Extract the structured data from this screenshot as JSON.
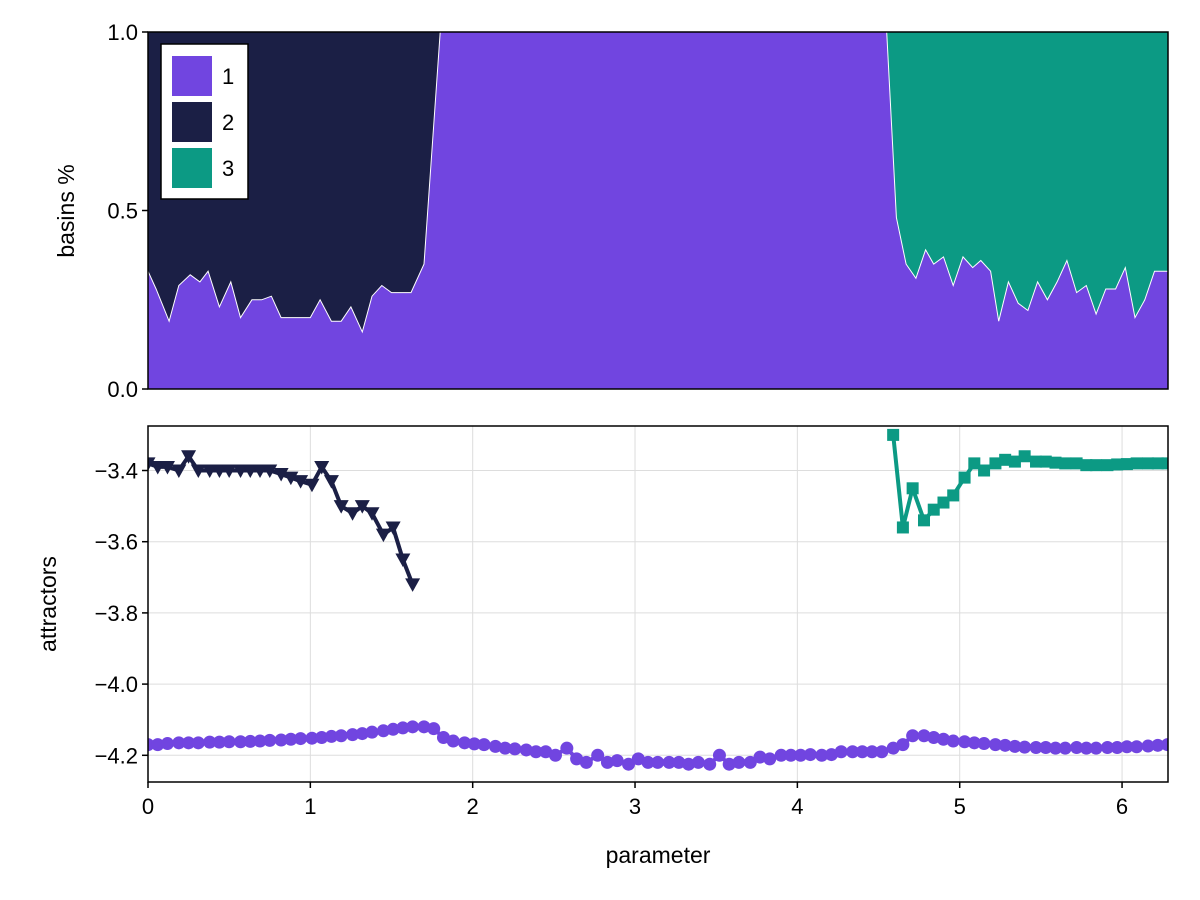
{
  "colors": {
    "series1": "#7145e0",
    "series2": "#1b1f45",
    "series3": "#0c9a84",
    "grid": "#dddddd",
    "frame": "#000000"
  },
  "chart_data": [
    {
      "type": "area",
      "stacked": true,
      "ylabel": "basins %",
      "xlabel": "",
      "xlim": [
        0,
        6.283
      ],
      "ylim": [
        0,
        1
      ],
      "yticks": [
        "0.0",
        "0.5",
        "1.0"
      ],
      "grid": false,
      "legend": {
        "placement": "top-left",
        "entries": [
          "1",
          "2",
          "3"
        ]
      },
      "x": [
        0.0,
        0.05,
        0.13,
        0.19,
        0.26,
        0.32,
        0.37,
        0.44,
        0.51,
        0.57,
        0.64,
        0.7,
        0.76,
        0.82,
        0.88,
        0.94,
        1.0,
        1.06,
        1.13,
        1.19,
        1.25,
        1.32,
        1.38,
        1.44,
        1.5,
        1.56,
        1.62,
        1.7,
        1.8,
        1.9,
        2.0,
        2.5,
        3.0,
        3.5,
        4.0,
        4.45,
        4.55,
        4.61,
        4.67,
        4.73,
        4.79,
        4.84,
        4.9,
        4.96,
        5.02,
        5.08,
        5.13,
        5.19,
        5.24,
        5.3,
        5.36,
        5.42,
        5.48,
        5.54,
        5.6,
        5.66,
        5.72,
        5.78,
        5.84,
        5.9,
        5.96,
        6.02,
        6.08,
        6.14,
        6.2,
        6.283
      ],
      "series": [
        {
          "name": "1",
          "values": [
            0.33,
            0.28,
            0.19,
            0.29,
            0.32,
            0.3,
            0.33,
            0.23,
            0.3,
            0.2,
            0.25,
            0.25,
            0.26,
            0.2,
            0.2,
            0.2,
            0.2,
            0.25,
            0.19,
            0.19,
            0.23,
            0.16,
            0.26,
            0.29,
            0.27,
            0.27,
            0.27,
            0.35,
            1.0,
            1.0,
            1.0,
            1.0,
            1.0,
            1.0,
            1.0,
            1.0,
            1.0,
            0.48,
            0.35,
            0.31,
            0.39,
            0.35,
            0.37,
            0.29,
            0.37,
            0.34,
            0.36,
            0.33,
            0.19,
            0.3,
            0.24,
            0.22,
            0.3,
            0.25,
            0.3,
            0.36,
            0.27,
            0.29,
            0.21,
            0.28,
            0.28,
            0.34,
            0.2,
            0.25,
            0.33,
            0.33
          ]
        },
        {
          "name": "2",
          "values": [
            0.67,
            0.72,
            0.81,
            0.71,
            0.68,
            0.7,
            0.67,
            0.77,
            0.7,
            0.8,
            0.75,
            0.75,
            0.74,
            0.8,
            0.8,
            0.8,
            0.8,
            0.75,
            0.81,
            0.81,
            0.77,
            0.84,
            0.74,
            0.71,
            0.73,
            0.73,
            0.73,
            0.65,
            0.0,
            0.0,
            0.0,
            0.0,
            0.0,
            0.0,
            0.0,
            0.0,
            0.0,
            0.0,
            0.0,
            0.0,
            0.0,
            0.0,
            0.0,
            0.0,
            0.0,
            0.0,
            0.0,
            0.0,
            0.0,
            0.0,
            0.0,
            0.0,
            0.0,
            0.0,
            0.0,
            0.0,
            0.0,
            0.0,
            0.0,
            0.0,
            0.0,
            0.0,
            0.0,
            0.0,
            0.0,
            0.0
          ]
        },
        {
          "name": "3",
          "values": [
            0.0,
            0.0,
            0.0,
            0.0,
            0.0,
            0.0,
            0.0,
            0.0,
            0.0,
            0.0,
            0.0,
            0.0,
            0.0,
            0.0,
            0.0,
            0.0,
            0.0,
            0.0,
            0.0,
            0.0,
            0.0,
            0.0,
            0.0,
            0.0,
            0.0,
            0.0,
            0.0,
            0.0,
            0.0,
            0.0,
            0.0,
            0.0,
            0.0,
            0.0,
            0.0,
            0.0,
            0.0,
            0.52,
            0.65,
            0.69,
            0.61,
            0.65,
            0.63,
            0.71,
            0.63,
            0.66,
            0.64,
            0.67,
            0.81,
            0.7,
            0.76,
            0.78,
            0.7,
            0.75,
            0.7,
            0.64,
            0.73,
            0.71,
            0.79,
            0.72,
            0.72,
            0.66,
            0.8,
            0.75,
            0.67,
            0.67
          ]
        }
      ]
    },
    {
      "type": "line",
      "ylabel": "attractors",
      "xlabel": "parameter",
      "xlim": [
        0,
        6.283
      ],
      "ylim": [
        -4.275,
        -3.275
      ],
      "xticks": [
        "0",
        "1",
        "2",
        "3",
        "4",
        "5",
        "6"
      ],
      "yticks": [
        "−3.4",
        "−3.6",
        "−3.8",
        "−4.0",
        "−4.2"
      ],
      "grid": true,
      "series": [
        {
          "name": "1",
          "marker": "circle",
          "x": [
            0.0,
            0.06,
            0.12,
            0.19,
            0.25,
            0.31,
            0.38,
            0.44,
            0.5,
            0.57,
            0.63,
            0.69,
            0.75,
            0.82,
            0.88,
            0.94,
            1.01,
            1.07,
            1.13,
            1.19,
            1.26,
            1.32,
            1.38,
            1.45,
            1.51,
            1.57,
            1.63,
            1.7,
            1.76,
            1.82,
            1.88,
            1.95,
            2.01,
            2.07,
            2.14,
            2.2,
            2.26,
            2.33,
            2.39,
            2.45,
            2.51,
            2.58,
            2.64,
            2.7,
            2.77,
            2.83,
            2.89,
            2.96,
            3.02,
            3.08,
            3.14,
            3.21,
            3.27,
            3.33,
            3.39,
            3.46,
            3.52,
            3.58,
            3.64,
            3.71,
            3.77,
            3.83,
            3.9,
            3.96,
            4.02,
            4.08,
            4.15,
            4.21,
            4.27,
            4.34,
            4.4,
            4.46,
            4.52,
            4.59,
            4.65,
            4.71,
            4.78,
            4.84,
            4.9,
            4.96,
            5.03,
            5.09,
            5.15,
            5.22,
            5.28,
            5.34,
            5.4,
            5.47,
            5.53,
            5.59,
            5.65,
            5.72,
            5.78,
            5.84,
            5.91,
            5.97,
            6.03,
            6.09,
            6.16,
            6.22,
            6.28
          ],
          "values": [
            -4.17,
            -4.17,
            -4.167,
            -4.165,
            -4.165,
            -4.165,
            -4.163,
            -4.163,
            -4.162,
            -4.162,
            -4.161,
            -4.16,
            -4.158,
            -4.157,
            -4.155,
            -4.153,
            -4.152,
            -4.15,
            -4.147,
            -4.145,
            -4.142,
            -4.139,
            -4.135,
            -4.131,
            -4.127,
            -4.123,
            -4.12,
            -4.12,
            -4.125,
            -4.15,
            -4.16,
            -4.165,
            -4.168,
            -4.17,
            -4.175,
            -4.18,
            -4.182,
            -4.185,
            -4.19,
            -4.19,
            -4.2,
            -4.18,
            -4.21,
            -4.22,
            -4.2,
            -4.22,
            -4.215,
            -4.225,
            -4.21,
            -4.22,
            -4.22,
            -4.22,
            -4.22,
            -4.225,
            -4.22,
            -4.225,
            -4.2,
            -4.225,
            -4.22,
            -4.22,
            -4.205,
            -4.21,
            -4.2,
            -4.2,
            -4.2,
            -4.198,
            -4.2,
            -4.198,
            -4.19,
            -4.19,
            -4.19,
            -4.19,
            -4.19,
            -4.18,
            -4.17,
            -4.145,
            -4.145,
            -4.15,
            -4.155,
            -4.16,
            -4.162,
            -4.165,
            -4.167,
            -4.17,
            -4.172,
            -4.175,
            -4.177,
            -4.178,
            -4.178,
            -4.18,
            -4.18,
            -4.178,
            -4.18,
            -4.18,
            -4.178,
            -4.178,
            -4.176,
            -4.176,
            -4.174,
            -4.172,
            -4.17
          ]
        },
        {
          "name": "2",
          "marker": "triangle-down",
          "x": [
            0.0,
            0.06,
            0.12,
            0.19,
            0.25,
            0.31,
            0.38,
            0.44,
            0.5,
            0.57,
            0.63,
            0.69,
            0.75,
            0.82,
            0.88,
            0.94,
            1.01,
            1.07,
            1.13,
            1.19,
            1.26,
            1.32,
            1.38,
            1.45,
            1.51,
            1.57,
            1.63
          ],
          "values": [
            -3.38,
            -3.39,
            -3.39,
            -3.4,
            -3.36,
            -3.4,
            -3.4,
            -3.4,
            -3.4,
            -3.4,
            -3.4,
            -3.4,
            -3.4,
            -3.41,
            -3.42,
            -3.43,
            -3.44,
            -3.39,
            -3.43,
            -3.5,
            -3.52,
            -3.5,
            -3.52,
            -3.58,
            -3.56,
            -3.65,
            -3.72
          ]
        },
        {
          "name": "3",
          "marker": "square",
          "x": [
            4.59,
            4.65,
            4.71,
            4.78,
            4.84,
            4.9,
            4.96,
            5.03,
            5.09,
            5.15,
            5.22,
            5.28,
            5.34,
            5.4,
            5.47,
            5.53,
            5.59,
            5.65,
            5.72,
            5.78,
            5.84,
            5.91,
            5.97,
            6.03,
            6.09,
            6.16,
            6.22,
            6.28
          ],
          "values": [
            -3.3,
            -3.56,
            -3.45,
            -3.54,
            -3.51,
            -3.49,
            -3.47,
            -3.42,
            -3.38,
            -3.4,
            -3.38,
            -3.37,
            -3.375,
            -3.36,
            -3.375,
            -3.375,
            -3.378,
            -3.38,
            -3.38,
            -3.385,
            -3.385,
            -3.385,
            -3.383,
            -3.382,
            -3.38,
            -3.38,
            -3.38,
            -3.38
          ]
        }
      ]
    }
  ]
}
